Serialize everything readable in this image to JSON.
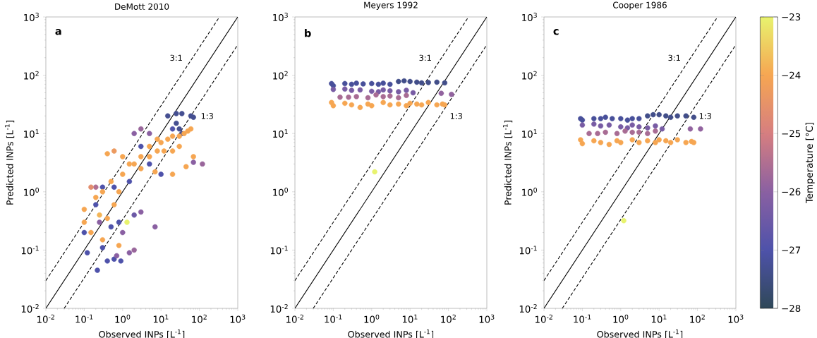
{
  "chart_data": [
    {
      "type": "scatter",
      "title": "DeMott 2010",
      "xlabel": "Observed INPs [L$^{-1}$]",
      "ylabel": "Predicted INPs [L$^{-1}$]",
      "log": "xy",
      "marker": "circle",
      "xlim": [
        0.01,
        1000
      ],
      "ylim": [
        0.01,
        1000
      ],
      "xticks": [
        {
          "value": 0.01,
          "label": "10$^{-2}$"
        },
        {
          "value": 0.1,
          "label": "10$^{-1}$"
        },
        {
          "value": 1,
          "label": "10$^{0}$"
        },
        {
          "value": 10,
          "label": "10$^{1}$"
        },
        {
          "value": 100,
          "label": "10$^{2}$"
        },
        {
          "value": 1000,
          "label": "10$^{3}$"
        }
      ],
      "yticks": [
        {
          "value": 0.01,
          "label": "10$^{-2}$"
        },
        {
          "value": 0.1,
          "label": "10$^{-1}$"
        },
        {
          "value": 1,
          "label": "10$^{0}$"
        },
        {
          "value": 10,
          "label": "10$^{1}$"
        },
        {
          "value": 100,
          "label": "10$^{2}$"
        },
        {
          "value": 1000,
          "label": "10$^{3}$"
        }
      ],
      "annotations": [
        "a",
        "3:1",
        "1:3"
      ],
      "series": [
        {
          "type": "line",
          "x": [
            0.01,
            1000
          ],
          "values": [
            0.01,
            1000
          ],
          "color": "#000000",
          "line_style": "solid",
          "marker": "none"
        },
        {
          "type": "line",
          "x": [
            0.01,
            333.3
          ],
          "values": [
            0.03,
            1000
          ],
          "color": "#000000",
          "line_style": "dashed",
          "marker": "none"
        },
        {
          "type": "line",
          "x": [
            0.03,
            1000
          ],
          "values": [
            0.01,
            333.3
          ],
          "color": "#000000",
          "line_style": "dashed",
          "marker": "none"
        },
        {
          "x": [
            15,
            25,
            35,
            60,
            70,
            25,
            30,
            35,
            20,
            0.1,
            0.12,
            0.3,
            0.4,
            0.6,
            0.9,
            0.22,
            0.5,
            0.8,
            0.2,
            0.3,
            0.6,
            1.5,
            3,
            5,
            10,
            2,
            1,
            1.5,
            2,
            3,
            7,
            120,
            70,
            3,
            2,
            0.25,
            0.7,
            5,
            0.2,
            1.3,
            10,
            15,
            20,
            30,
            40,
            50,
            60,
            30,
            20,
            8,
            5,
            3,
            2,
            1,
            0.5,
            0.3,
            0.2,
            0.1,
            0.1,
            0.15,
            0.3,
            0.4,
            0.6,
            0.15,
            0.4,
            0.6,
            1,
            70,
            45,
            20,
            7,
            0.8,
            0.25,
            5,
            8,
            12,
            3,
            1.5,
            0.8
          ],
          "values": [
            20,
            22,
            22,
            20,
            19,
            15,
            12,
            10,
            12,
            0.2,
            0.09,
            0.11,
            0.065,
            0.07,
            0.065,
            0.045,
            0.25,
            0.3,
            0.6,
            1.2,
            1.2,
            1.5,
            6,
            3,
            2,
            0.4,
            0.2,
            0.09,
            0.1,
            0.45,
            0.25,
            3,
            3.2,
            12,
            10,
            0.3,
            0.08,
            10,
            1.2,
            0.3,
            7,
            8,
            9,
            9,
            10,
            11,
            12,
            6,
            5,
            5,
            4,
            4,
            3,
            2,
            1.5,
            1,
            0.8,
            0.5,
            0.3,
            0.2,
            0.15,
            0.35,
            0.6,
            1.2,
            4.5,
            5,
            4,
            4,
            2.7,
            2,
            2.2,
            0.12,
            0.4,
            6,
            8,
            5,
            2.5,
            3,
            1
          ],
          "colors": [
            "#454f91",
            "#454f91",
            "#454f91",
            "#454f91",
            "#454f91",
            "#454f91",
            "#454f91",
            "#454f91",
            "#4e52aa",
            "#4e52aa",
            "#4e52aa",
            "#4e52aa",
            "#4e52aa",
            "#4e52aa",
            "#4e52aa",
            "#4e52aa",
            "#4e52aa",
            "#4e52aa",
            "#4e52aa",
            "#4e52aa",
            "#4e52aa",
            "#4e52aa",
            "#4e52aa",
            "#4e52aa",
            "#4e52aa",
            "#6c59a6",
            "#8a60a2",
            "#8a60a2",
            "#99669b",
            "#8a60a2",
            "#8a60a2",
            "#99669b",
            "#8a60a2",
            "#99669b",
            "#8a60a2",
            "#8a60a2",
            "#8a60a2",
            "#8a60a2",
            "#b06f91",
            "#e8f36e",
            "#f6a652",
            "#f6a652",
            "#f6a652",
            "#f6a652",
            "#f6a652",
            "#f6a652",
            "#f6a652",
            "#f6a652",
            "#f6a652",
            "#f6a652",
            "#f6a652",
            "#f6a652",
            "#f6a652",
            "#f6a652",
            "#f6a652",
            "#f6a652",
            "#f6a652",
            "#f6a652",
            "#f6a652",
            "#f6a652",
            "#f6a652",
            "#f6a652",
            "#f6a652",
            "#e38e6e",
            "#f6a652",
            "#ec9a60",
            "#f6a652",
            "#f6a652",
            "#f6a652",
            "#f6a652",
            "#f6a652",
            "#f6a652",
            "#f3b558",
            "#f6a652",
            "#f6a652",
            "#f6a652",
            "#f6a652",
            "#f6a652",
            "#f6a652"
          ]
        }
      ]
    },
    {
      "type": "scatter",
      "title": "Meyers 1992",
      "xlabel": "Observed INPs [L$^{-1}$]",
      "log": "xy",
      "marker": "circle",
      "xlim": [
        0.01,
        1000
      ],
      "ylim": [
        0.01,
        1000
      ],
      "xticks": [
        {
          "value": 0.01,
          "label": "10$^{-2}$"
        },
        {
          "value": 0.1,
          "label": "10$^{-1}$"
        },
        {
          "value": 1,
          "label": "10$^{0}$"
        },
        {
          "value": 10,
          "label": "10$^{1}$"
        },
        {
          "value": 100,
          "label": "10$^{2}$"
        },
        {
          "value": 1000,
          "label": "10$^{3}$"
        }
      ],
      "yticks": [
        {
          "value": 0.01,
          "label": "10$^{-2}$"
        },
        {
          "value": 0.1,
          "label": "10$^{-1}$"
        },
        {
          "value": 1,
          "label": "10$^{0}$"
        },
        {
          "value": 10,
          "label": "10$^{1}$"
        },
        {
          "value": 100,
          "label": "10$^{2}$"
        },
        {
          "value": 1000,
          "label": "10$^{3}$"
        }
      ],
      "annotations": [
        "b",
        "3:1",
        "1:3"
      ],
      "series": [
        {
          "type": "line",
          "x": [
            0.01,
            1000
          ],
          "values": [
            0.01,
            1000
          ],
          "color": "#000000",
          "line_style": "solid",
          "marker": "none"
        },
        {
          "type": "line",
          "x": [
            0.01,
            333.3
          ],
          "values": [
            0.03,
            1000
          ],
          "color": "#000000",
          "line_style": "dashed",
          "marker": "none"
        },
        {
          "type": "line",
          "x": [
            0.03,
            1000
          ],
          "values": [
            0.01,
            333.3
          ],
          "color": "#000000",
          "line_style": "dashed",
          "marker": "none"
        },
        {
          "x": [
            0.09,
            0.1,
            0.2,
            0.3,
            0.4,
            0.6,
            1,
            1.5,
            2,
            3,
            5,
            7,
            10,
            15,
            20,
            30,
            50,
            80,
            0.1,
            0.2,
            0.3,
            0.5,
            1,
            1.5,
            2,
            3,
            5,
            8,
            12,
            0.15,
            0.25,
            0.4,
            0.8,
            1.3,
            2,
            3,
            5,
            8,
            65,
            120,
            0.09,
            0.1,
            0.2,
            0.3,
            0.5,
            0.8,
            1,
            2,
            3,
            5,
            8,
            10,
            15,
            20,
            30,
            50,
            70,
            80,
            1.2
          ],
          "values": [
            72,
            66,
            72,
            70,
            73,
            71,
            72,
            70,
            73,
            70,
            78,
            80,
            78,
            76,
            74,
            75,
            76,
            74,
            57,
            58,
            55,
            56,
            53,
            52,
            56,
            54,
            52,
            55,
            50,
            42,
            42,
            43,
            41,
            46,
            43,
            44,
            41,
            45,
            49,
            47,
            34,
            30,
            33,
            31,
            28,
            32,
            30,
            34,
            31,
            32,
            30,
            33,
            32,
            31,
            34,
            31,
            32,
            31,
            2.2
          ],
          "colors": [
            "#48509a",
            "#48509a",
            "#48509a",
            "#48509a",
            "#48509a",
            "#48509a",
            "#48509a",
            "#48509a",
            "#48509a",
            "#48509a",
            "#424e89",
            "#424e89",
            "#424e89",
            "#424e89",
            "#424e89",
            "#424e89",
            "#424e89",
            "#424e89",
            "#785ca4",
            "#785ca4",
            "#785ca4",
            "#785ca4",
            "#785ca4",
            "#785ca4",
            "#785ca4",
            "#785ca4",
            "#785ca4",
            "#785ca4",
            "#785ca4",
            "#a86c94",
            "#a86c94",
            "#a86c94",
            "#a86c94",
            "#a86c94",
            "#a86c94",
            "#a86c94",
            "#a86c94",
            "#a86c94",
            "#92639f",
            "#92639f",
            "#f6a652",
            "#f6a652",
            "#f6a652",
            "#f6a652",
            "#f6a652",
            "#f6a652",
            "#f6a652",
            "#f6a652",
            "#f6a652",
            "#f6a652",
            "#f6a652",
            "#f6a652",
            "#f6a652",
            "#f6a652",
            "#f6a652",
            "#f6a652",
            "#f6a652",
            "#f6a652",
            "#e8f36e"
          ]
        }
      ]
    },
    {
      "type": "scatter",
      "title": "Cooper 1986",
      "xlabel": "Observed INPs [L$^{-1}$]",
      "ylabel": "Predicted INPs [L$^{-1}$]",
      "log": "xy",
      "marker": "circle",
      "xlim": [
        0.01,
        1000
      ],
      "ylim": [
        0.01,
        1000
      ],
      "xticks": [
        {
          "value": 0.01,
          "label": "10$^{-2}$"
        },
        {
          "value": 0.1,
          "label": "10$^{-1}$"
        },
        {
          "value": 1,
          "label": "10$^{0}$"
        },
        {
          "value": 10,
          "label": "10$^{1}$"
        },
        {
          "value": 100,
          "label": "10$^{2}$"
        },
        {
          "value": 1000,
          "label": "10$^{3}$"
        }
      ],
      "yticks": [
        {
          "value": 0.01,
          "label": "10$^{-2}$"
        },
        {
          "value": 0.1,
          "label": "10$^{-1}$"
        },
        {
          "value": 1,
          "label": "10$^{0}$"
        },
        {
          "value": 10,
          "label": "10$^{1}$"
        },
        {
          "value": 100,
          "label": "10$^{2}$"
        },
        {
          "value": 1000,
          "label": "10$^{3}$"
        }
      ],
      "clim": [
        -28,
        -23
      ],
      "clabel": "Temperature [°C]",
      "cticks": [
        {
          "value": -28,
          "label": "−28"
        },
        {
          "value": -27,
          "label": "−27"
        },
        {
          "value": -26,
          "label": "−26"
        },
        {
          "value": -25,
          "label": "−25"
        },
        {
          "value": -24,
          "label": "−24"
        },
        {
          "value": -23,
          "label": "−23"
        }
      ],
      "annotations": [
        "c",
        "3:1",
        "1:3"
      ],
      "series": [
        {
          "type": "line",
          "x": [
            0.01,
            1000
          ],
          "values": [
            0.01,
            1000
          ],
          "color": "#000000",
          "line_style": "solid",
          "marker": "none"
        },
        {
          "type": "line",
          "x": [
            0.01,
            333.3
          ],
          "values": [
            0.03,
            1000
          ],
          "color": "#000000",
          "line_style": "dashed",
          "marker": "none"
        },
        {
          "type": "line",
          "x": [
            0.03,
            1000
          ],
          "values": [
            0.01,
            333.3
          ],
          "color": "#000000",
          "line_style": "dashed",
          "marker": "none"
        },
        {
          "x": [
            0.09,
            0.1,
            0.2,
            0.3,
            0.4,
            0.6,
            1,
            1.5,
            2,
            3,
            5,
            7,
            10,
            15,
            20,
            30,
            50,
            80,
            0.1,
            0.2,
            0.3,
            0.5,
            1,
            1.5,
            2,
            3,
            5,
            8,
            12,
            0.15,
            0.25,
            0.4,
            0.8,
            1.3,
            2,
            3,
            5,
            8,
            65,
            120,
            0.09,
            0.1,
            0.2,
            0.3,
            0.5,
            0.8,
            1,
            2,
            3,
            5,
            8,
            10,
            15,
            20,
            30,
            50,
            70,
            80,
            1.2
          ],
          "values": [
            18,
            17,
            18,
            18,
            19,
            18,
            18,
            17,
            18,
            18,
            20,
            21,
            21,
            20,
            19,
            20,
            20,
            19,
            14,
            14.5,
            13.5,
            14,
            13,
            12.5,
            14,
            13,
            12.5,
            13.5,
            12,
            10,
            10,
            10.5,
            10,
            11,
            10.5,
            10.5,
            10,
            11,
            12,
            12,
            7.8,
            6.7,
            7.5,
            7,
            6.5,
            7.5,
            7,
            7.8,
            7,
            7.5,
            7,
            7.8,
            7.5,
            7,
            7.8,
            7,
            7.3,
            7,
            0.32
          ],
          "colors": [
            "#48509a",
            "#48509a",
            "#48509a",
            "#48509a",
            "#48509a",
            "#48509a",
            "#48509a",
            "#48509a",
            "#48509a",
            "#48509a",
            "#424e89",
            "#424e89",
            "#424e89",
            "#424e89",
            "#424e89",
            "#424e89",
            "#424e89",
            "#424e89",
            "#785ca4",
            "#785ca4",
            "#785ca4",
            "#785ca4",
            "#785ca4",
            "#785ca4",
            "#785ca4",
            "#785ca4",
            "#785ca4",
            "#785ca4",
            "#785ca4",
            "#a86c94",
            "#a86c94",
            "#a86c94",
            "#a86c94",
            "#a86c94",
            "#a86c94",
            "#a86c94",
            "#a86c94",
            "#a86c94",
            "#92639f",
            "#92639f",
            "#f6a652",
            "#f6a652",
            "#f6a652",
            "#f6a652",
            "#f6a652",
            "#f6a652",
            "#f6a652",
            "#f6a652",
            "#f6a652",
            "#f6a652",
            "#f6a652",
            "#f6a652",
            "#f6a652",
            "#f6a652",
            "#f6a652",
            "#f6a652",
            "#f6a652",
            "#f6a652",
            "#e8f36e"
          ]
        }
      ]
    }
  ]
}
